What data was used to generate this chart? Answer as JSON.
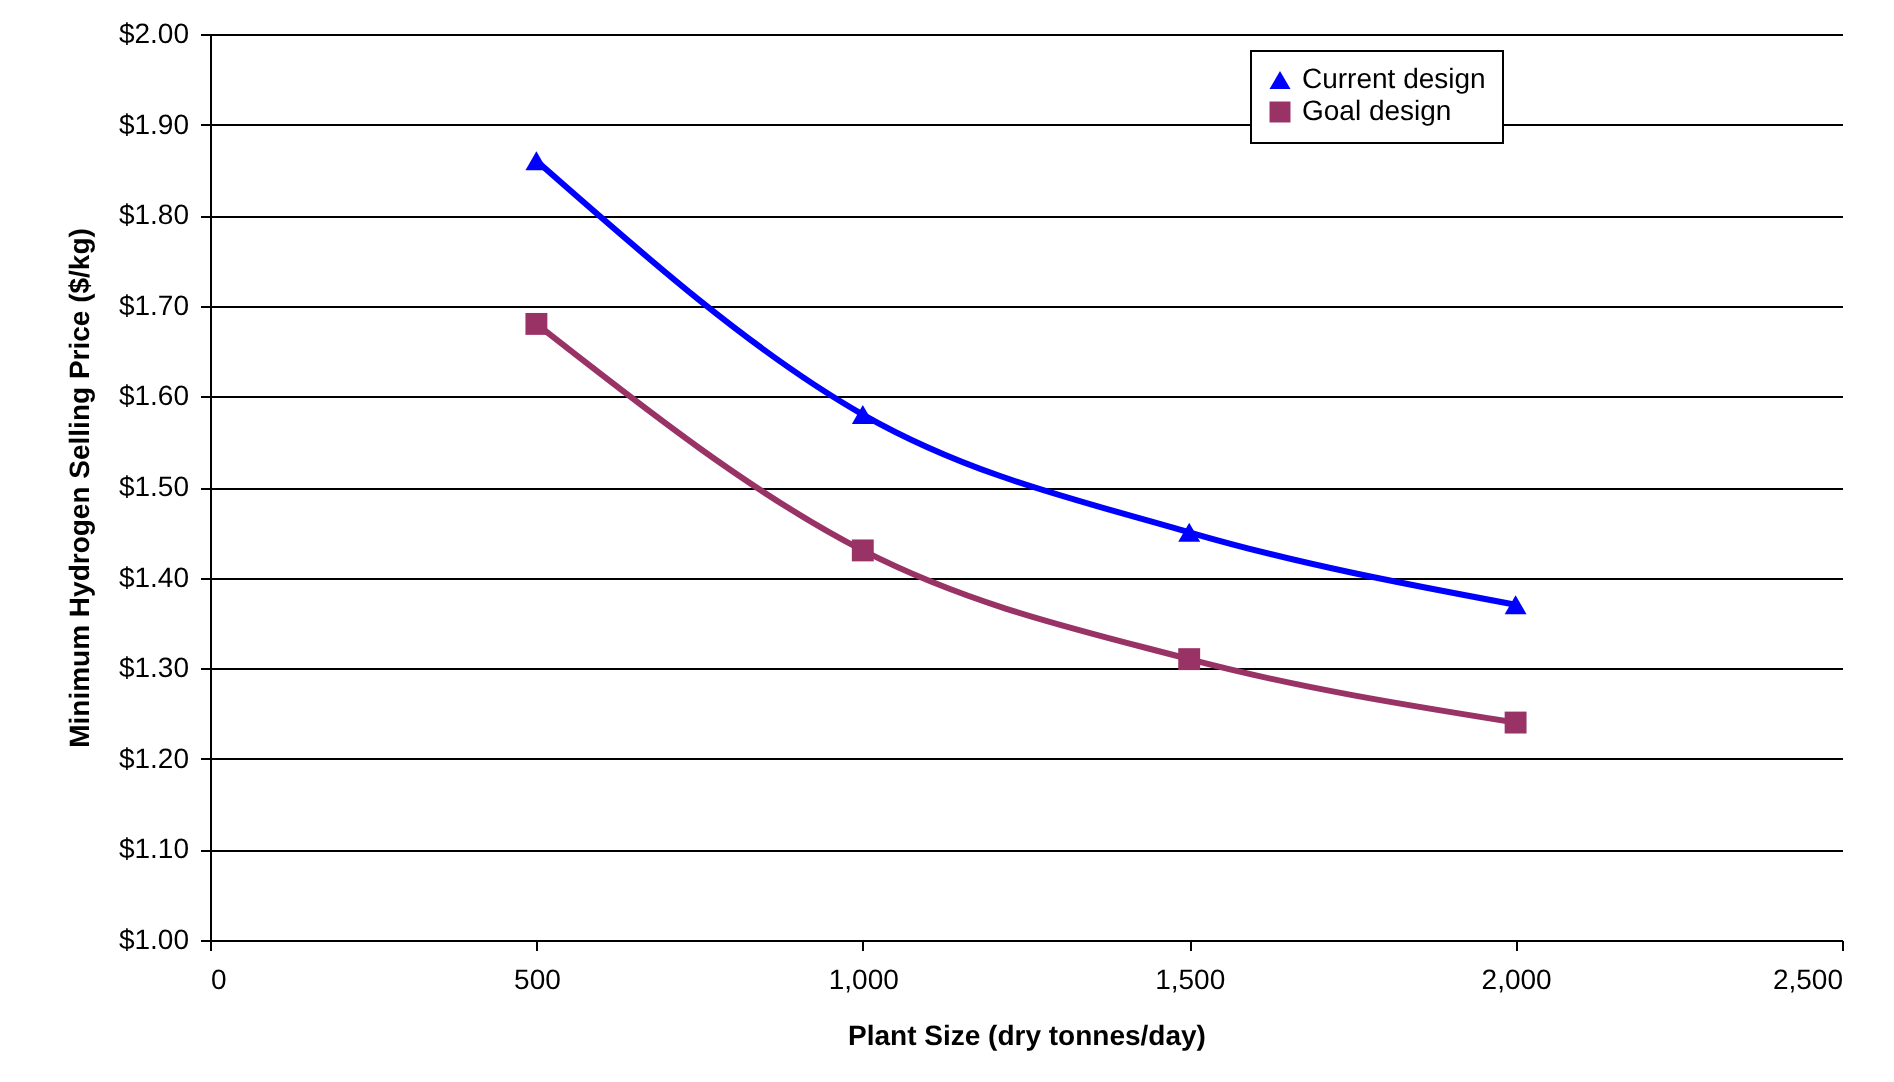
{
  "chart_data": {
    "type": "line",
    "xlabel": "Plant Size (dry tonnes/day)",
    "ylabel": "Minimum Hydrogen Selling Price ($/kg)",
    "x": [
      500,
      1000,
      1500,
      2000
    ],
    "series": [
      {
        "name": "Current design",
        "color": "#0000ff",
        "marker": "triangle",
        "values": [
          1.86,
          1.58,
          1.45,
          1.37
        ]
      },
      {
        "name": "Goal design",
        "color": "#993366",
        "marker": "square",
        "values": [
          1.68,
          1.43,
          1.31,
          1.24
        ]
      }
    ],
    "xlim": [
      0,
      2500
    ],
    "xticks": [
      0,
      500,
      {
        "value": 1000,
        "label": "1,000"
      },
      {
        "value": 1500,
        "label": "1,500"
      },
      {
        "value": 2000,
        "label": "2,000"
      },
      {
        "value": 2500,
        "label": "2,500"
      }
    ],
    "ylim": [
      1.0,
      2.0
    ],
    "yticks": [
      {
        "value": 1.0,
        "label": "$1.00"
      },
      {
        "value": 1.1,
        "label": "$1.10"
      },
      {
        "value": 1.2,
        "label": "$1.20"
      },
      {
        "value": 1.3,
        "label": "$1.30"
      },
      {
        "value": 1.4,
        "label": "$1.40"
      },
      {
        "value": 1.5,
        "label": "$1.50"
      },
      {
        "value": 1.6,
        "label": "$1.60"
      },
      {
        "value": 1.7,
        "label": "$1.70"
      },
      {
        "value": 1.8,
        "label": "$1.80"
      },
      {
        "value": 1.9,
        "label": "$1.90"
      },
      {
        "value": 2.0,
        "label": "$2.00"
      }
    ],
    "grid": "y",
    "legend": "top right",
    "line_style": "solid"
  }
}
